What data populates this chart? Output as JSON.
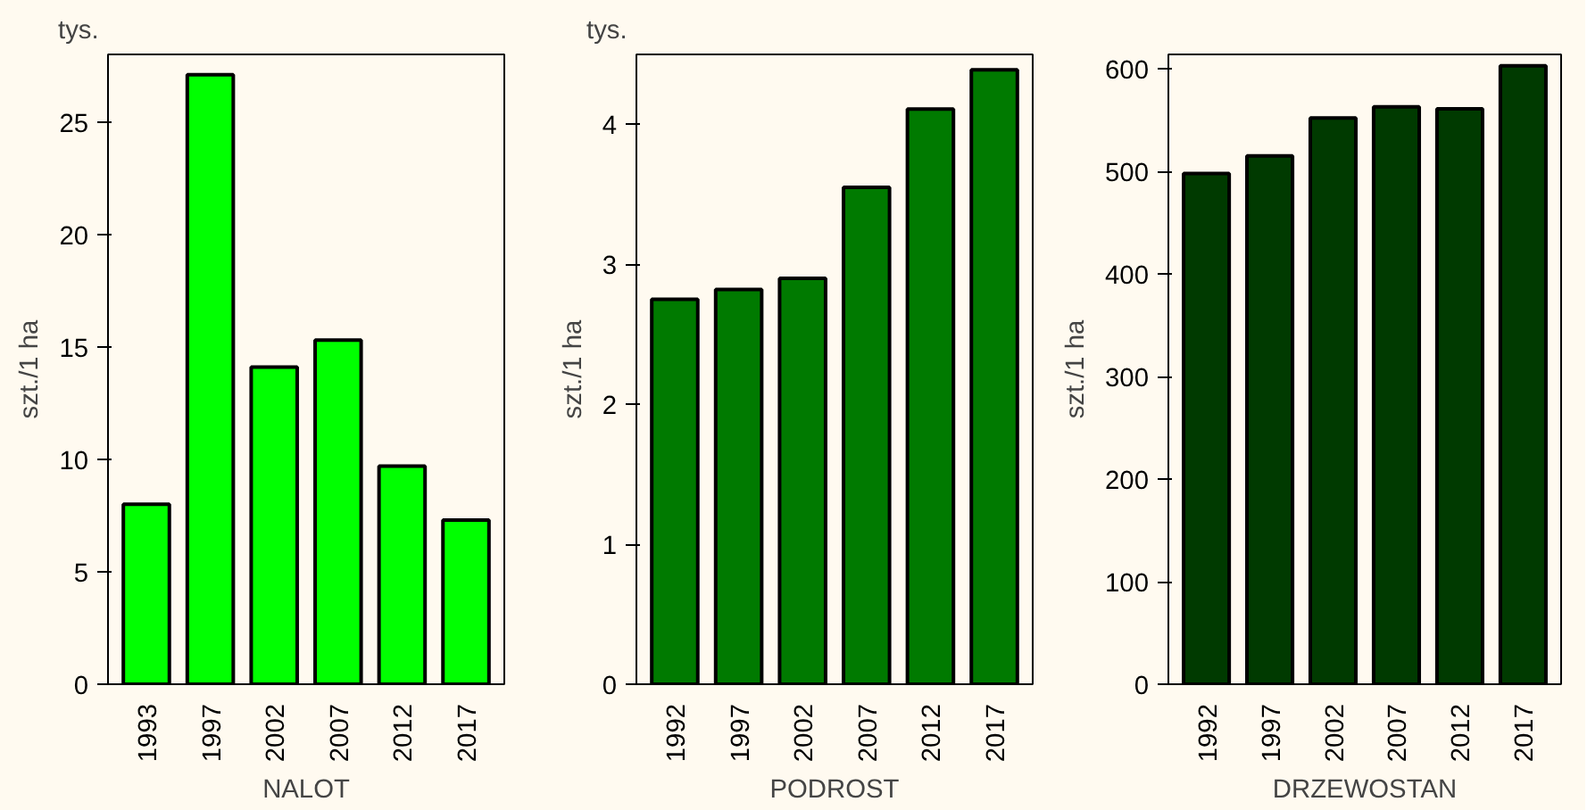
{
  "chart_data": [
    {
      "type": "bar",
      "xlabel": "NALOT",
      "ylabel": "szt./1 ha",
      "annotations": [
        "tys."
      ],
      "categories": [
        "1993",
        "1997",
        "2002",
        "2007",
        "2012",
        "2017"
      ],
      "values": [
        8.0,
        27.1,
        14.1,
        15.3,
        9.7,
        7.3
      ],
      "color": "#00ff00",
      "ylim": [
        0,
        28
      ],
      "yticks": [
        0,
        5,
        10,
        15,
        20,
        25
      ]
    },
    {
      "type": "bar",
      "xlabel": "PODROST",
      "ylabel": "szt./1 ha",
      "annotations": [
        "tys."
      ],
      "categories": [
        "1992",
        "1997",
        "2002",
        "2007",
        "2012",
        "2017"
      ],
      "values": [
        2.75,
        2.82,
        2.9,
        3.55,
        4.11,
        4.39
      ],
      "color": "#007a00",
      "ylim": [
        0,
        4.5
      ],
      "yticks": [
        0,
        1,
        2,
        3,
        4
      ]
    },
    {
      "type": "bar",
      "xlabel": "DRZEWOSTAN",
      "ylabel": "szt./1 ha",
      "categories": [
        "1992",
        "1997",
        "2002",
        "2007",
        "2012",
        "2017"
      ],
      "values": [
        498,
        515,
        552,
        563,
        561,
        603
      ],
      "color": "#003a00",
      "ylim": [
        0,
        614
      ],
      "yticks": [
        0,
        100,
        200,
        300,
        400,
        500,
        600
      ]
    }
  ]
}
